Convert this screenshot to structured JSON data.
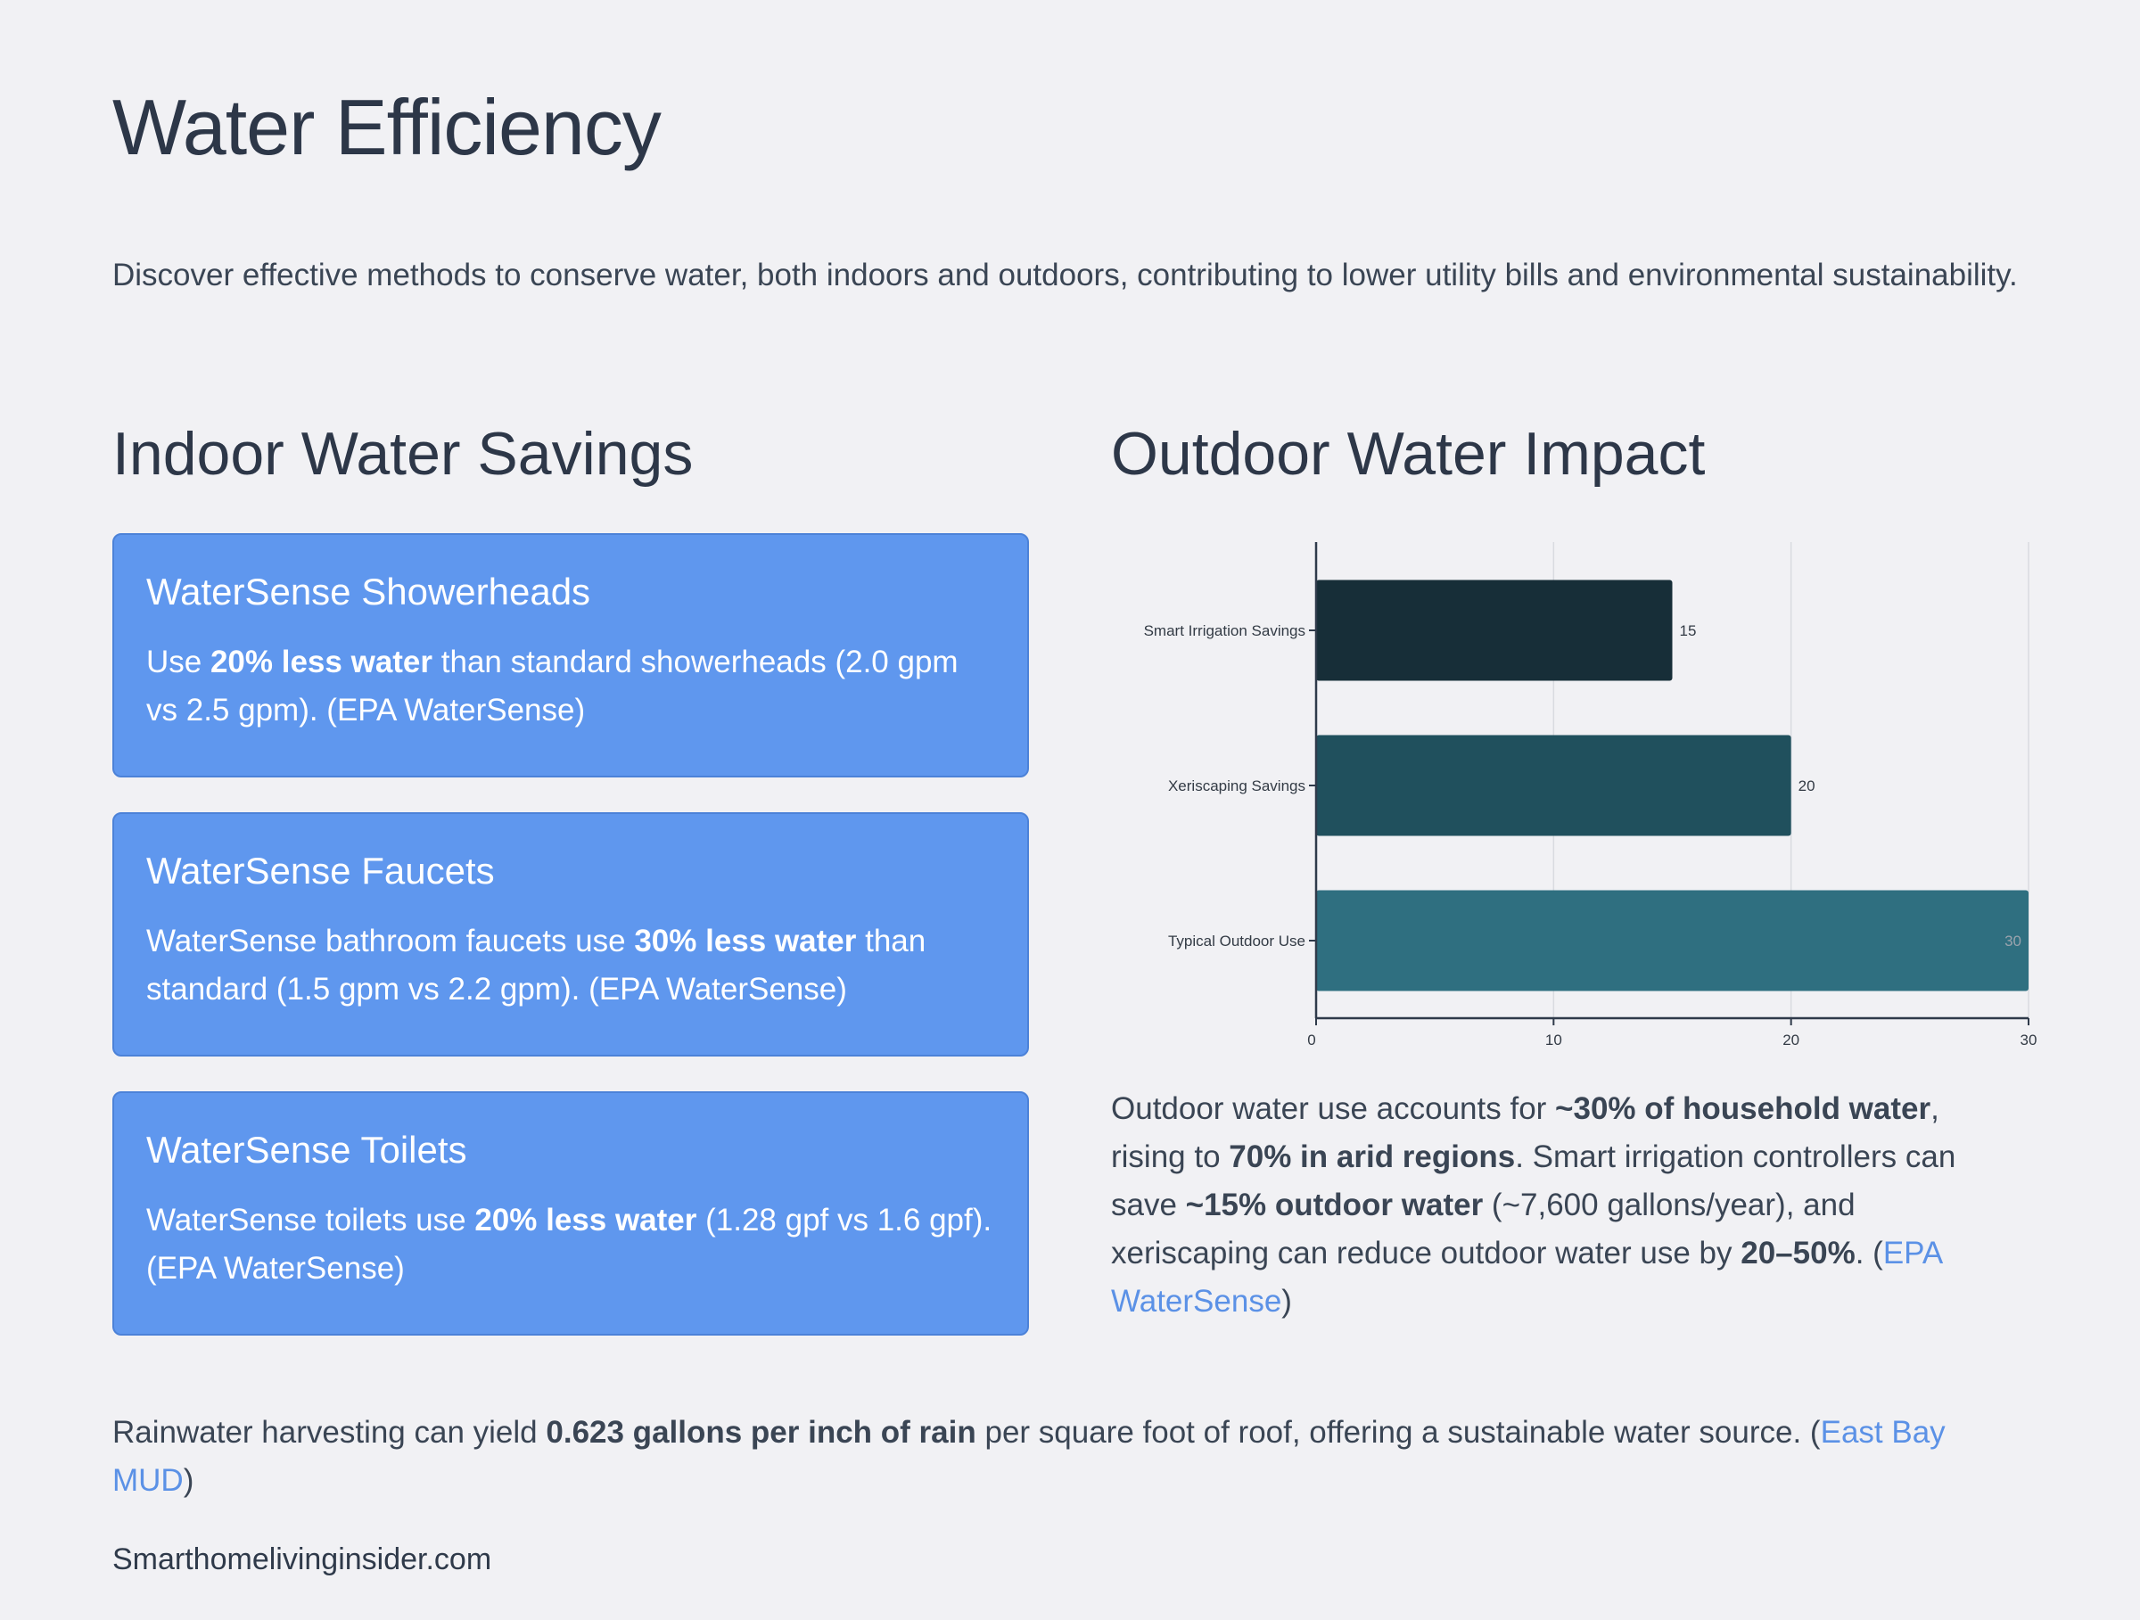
{
  "page": {
    "title": "Water Efficiency",
    "intro": "Discover effective methods to conserve water, both indoors and outdoors, contributing to lower utility bills and environmental sustainability."
  },
  "indoor": {
    "title": "Indoor Water Savings",
    "cards": [
      {
        "title": "WaterSense Showerheads",
        "pre": "Use ",
        "bold": "20% less water",
        "post": " than standard showerheads (2.0 gpm vs 2.5 gpm). (EPA WaterSense)"
      },
      {
        "title": "WaterSense Faucets",
        "pre": "WaterSense bathroom faucets use ",
        "bold": "30% less water",
        "post": " than standard (1.5 gpm vs 2.2 gpm). (EPA WaterSense)"
      },
      {
        "title": "WaterSense Toilets",
        "pre": "WaterSense toilets use ",
        "bold": "20% less water",
        "post": " (1.28 gpf vs 1.6 gpf). (EPA WaterSense)"
      }
    ]
  },
  "outdoor": {
    "title": "Outdoor Water Impact",
    "desc": {
      "t1": "Outdoor water use accounts for ",
      "b1": "~30% of household water",
      "t2": ", rising to ",
      "b2": "70% in arid regions",
      "t3": ". Smart irrigation controllers can save ",
      "b3": "~15% outdoor water",
      "t4": " (~7,600 gallons/year), and xeriscaping can reduce outdoor water use by ",
      "b4": "20–50%",
      "t5": ". (",
      "link": "EPA WaterSense",
      "t6": ")"
    }
  },
  "rain": {
    "t1": "Rainwater harvesting can yield ",
    "b1": "0.623 gallons per inch of rain",
    "t2": " per square foot of roof, offering a sustainable water source. (",
    "link": "East Bay MUD",
    "t3": ")"
  },
  "footer": {
    "text": "Smarthomelivinginsider.com"
  },
  "chart_data": {
    "type": "bar",
    "orientation": "horizontal",
    "categories": [
      "Smart Irrigation Savings",
      "Xeriscaping Savings",
      "Typical Outdoor Use"
    ],
    "values": [
      15,
      20,
      30
    ],
    "xlim": [
      0,
      30
    ],
    "xticks": [
      0,
      10,
      20,
      30
    ],
    "colors": [
      "#172e38",
      "#20505d",
      "#2f6f80"
    ],
    "label_colors": [
      "#333b45",
      "#333b45",
      "#9aa3ad"
    ],
    "title": "",
    "xlabel": "",
    "ylabel": ""
  }
}
